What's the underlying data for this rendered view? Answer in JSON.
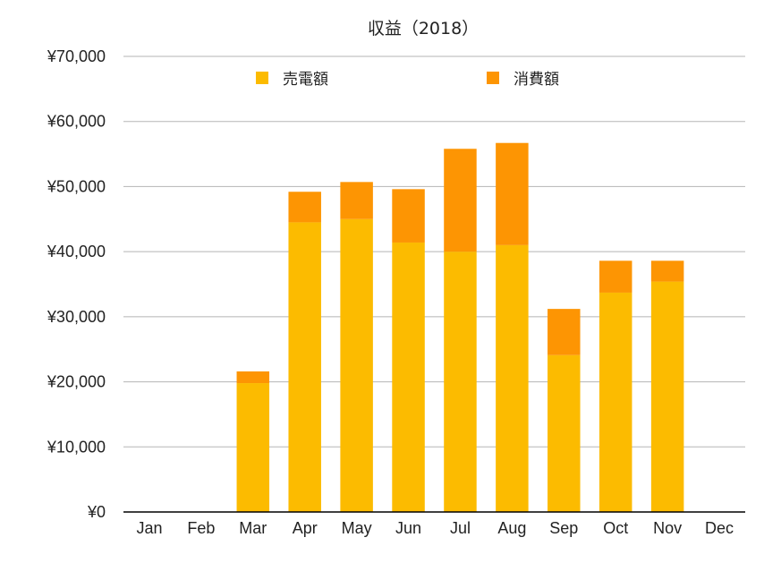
{
  "chart_data": {
    "type": "bar",
    "stacked": true,
    "title": "収益（2018）",
    "categories": [
      "Jan",
      "Feb",
      "Mar",
      "Apr",
      "May",
      "Jun",
      "Jul",
      "Aug",
      "Sep",
      "Oct",
      "Nov",
      "Dec"
    ],
    "series": [
      {
        "name": "売電額",
        "color": "#fcbb00",
        "values": [
          0,
          0,
          19800,
          44500,
          45000,
          41400,
          40000,
          41000,
          24100,
          33700,
          35400,
          0
        ]
      },
      {
        "name": "消費額",
        "color": "#fd9503",
        "values": [
          0,
          0,
          1800,
          4700,
          5700,
          8200,
          15800,
          15700,
          7100,
          4900,
          3200,
          0
        ]
      }
    ],
    "ylim": [
      0,
      70000
    ],
    "yticks": [
      0,
      10000,
      20000,
      30000,
      40000,
      50000,
      60000,
      70000
    ],
    "ytick_labels": [
      "¥0",
      "¥10,000",
      "¥20,000",
      "¥30,000",
      "¥40,000",
      "¥50,000",
      "¥60,000",
      "¥70,000"
    ],
    "grid": true,
    "legend_position": "top"
  }
}
